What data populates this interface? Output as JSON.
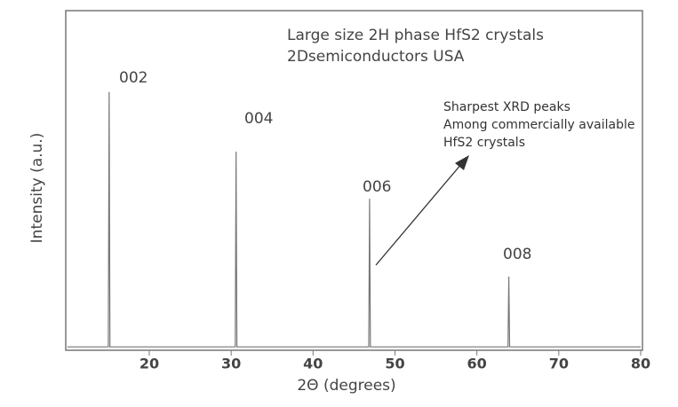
{
  "chart_data": {
    "type": "line",
    "title_lines": [
      "Large size 2H phase HfS2 crystals",
      "2Dsemiconductors USA"
    ],
    "x_label": "2Θ (degrees)",
    "y_label": "Intensity (a.u.)",
    "note_lines": [
      "Sharpest XRD peaks",
      "Among commercially available",
      "HfS2 crystals"
    ],
    "peak_labels": [
      "002",
      "004",
      "006",
      "008"
    ],
    "xlim": [
      10,
      80
    ],
    "xticks": [
      20,
      30,
      40,
      50,
      60,
      70,
      80
    ],
    "ylim": [
      0,
      100
    ],
    "series": [
      {
        "name": "HfS2",
        "color": "#777777",
        "x": [
          10,
          15.0,
          15.1,
          15.2,
          30.5,
          30.6,
          30.7,
          46.8,
          46.9,
          47.0,
          63.8,
          63.9,
          64.0,
          80
        ],
        "values": [
          1,
          1,
          76,
          1,
          1,
          58.5,
          1,
          1,
          44.6,
          1,
          1,
          21.7,
          1,
          1
        ]
      }
    ]
  }
}
